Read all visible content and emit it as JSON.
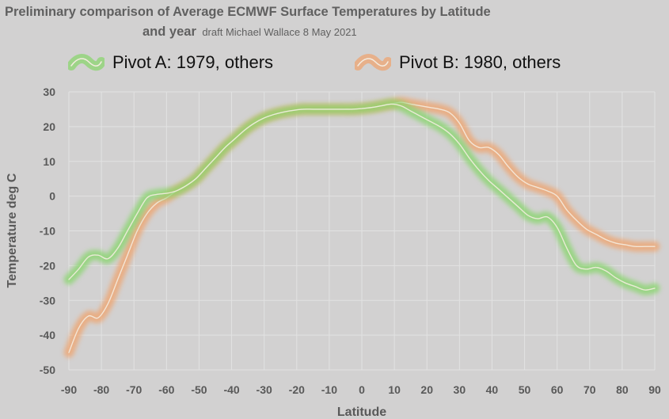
{
  "title": {
    "line1": "Preliminary comparison of Average ECMWF Surface Temperatures by Latitude",
    "line2_main": "and year",
    "line2_sub": "draft Michael Wallace 8 May 2021"
  },
  "legend": [
    {
      "label": "Pivot A: 1979, others",
      "color": "#86d66a"
    },
    {
      "label": "Pivot B: 1980, others",
      "color": "#f0a36c"
    }
  ],
  "colors": {
    "background": "#d2d1d1",
    "grid": "#e2e2e2",
    "axis_text": "#595959",
    "series_core": "#f4ece0"
  },
  "chart_data": {
    "type": "line",
    "title": "Preliminary comparison of Average ECMWF Surface Temperatures by Latitude and year",
    "xlabel": "Latitude",
    "ylabel": "Temperature deg C",
    "xlim": [
      -90,
      90
    ],
    "ylim": [
      -50,
      30
    ],
    "xticks": [
      "-90",
      "-80",
      "-70",
      "-60",
      "-50",
      "-40",
      "-30",
      "-20",
      "-10",
      "0",
      "10",
      "20",
      "30",
      "40",
      "50",
      "60",
      "70",
      "80",
      "90"
    ],
    "yticks": [
      "30",
      "20",
      "10",
      "0",
      "-10",
      "-20",
      "-30",
      "-40",
      "-50"
    ],
    "grid": true,
    "legend_position": "top",
    "series": [
      {
        "name": "Pivot A: 1979, others",
        "color": "#86d66a",
        "x": [
          -90,
          -87,
          -84,
          -81,
          -78,
          -75,
          -72,
          -69,
          -66,
          -63,
          -60,
          -57,
          -54,
          -51,
          -48,
          -45,
          -42,
          -39,
          -36,
          -33,
          -30,
          -27,
          -24,
          -21,
          -18,
          -15,
          -12,
          -9,
          -6,
          -3,
          0,
          3,
          6,
          9,
          12,
          15,
          18,
          21,
          24,
          27,
          30,
          33,
          36,
          39,
          42,
          45,
          48,
          51,
          54,
          57,
          60,
          63,
          66,
          69,
          72,
          75,
          78,
          81,
          84,
          87,
          90
        ],
        "y": [
          -24,
          -21,
          -17.5,
          -17,
          -18,
          -15,
          -10,
          -5,
          -0.5,
          0.5,
          0.8,
          1.5,
          3,
          5,
          8,
          11,
          14,
          16.5,
          19,
          21,
          22.5,
          23.5,
          24.2,
          24.7,
          25,
          25,
          25,
          25,
          25,
          25,
          25.2,
          25.5,
          26,
          26.5,
          26,
          24.5,
          23,
          21.5,
          20,
          18,
          15,
          11,
          7.5,
          4.5,
          2,
          -0.5,
          -3,
          -5.5,
          -6.5,
          -6,
          -9,
          -15,
          -20,
          -21,
          -20.5,
          -21.5,
          -23.5,
          -25,
          -26,
          -27,
          -26.5
        ]
      },
      {
        "name": "Pivot B: 1980, others",
        "color": "#f0a36c",
        "x": [
          -90,
          -87,
          -84,
          -81,
          -78,
          -75,
          -72,
          -69,
          -66,
          -63,
          -60,
          -57,
          -54,
          -51,
          -48,
          -45,
          -42,
          -39,
          -36,
          -33,
          -30,
          -27,
          -24,
          -21,
          -18,
          -15,
          -12,
          -9,
          -6,
          -3,
          0,
          3,
          6,
          9,
          12,
          15,
          18,
          21,
          24,
          27,
          30,
          33,
          36,
          39,
          42,
          45,
          48,
          51,
          54,
          57,
          60,
          63,
          66,
          69,
          72,
          75,
          78,
          81,
          84,
          87,
          90
        ],
        "y": [
          -45,
          -38,
          -34.5,
          -35,
          -31,
          -24,
          -17,
          -10,
          -5,
          -2,
          -0.5,
          1.5,
          3,
          5,
          8,
          11,
          14,
          16.5,
          19,
          21,
          22.5,
          23.5,
          24.2,
          24.7,
          25,
          25,
          25,
          25,
          25,
          25,
          25.2,
          25.5,
          26,
          26.5,
          27,
          26.5,
          26,
          25.5,
          25,
          24,
          21,
          16,
          14,
          14,
          12,
          8.5,
          5.5,
          3.5,
          2.5,
          1.5,
          0,
          -4,
          -7,
          -9.5,
          -11,
          -12.5,
          -13.5,
          -14,
          -14.5,
          -14.5,
          -14.5
        ]
      }
    ]
  }
}
